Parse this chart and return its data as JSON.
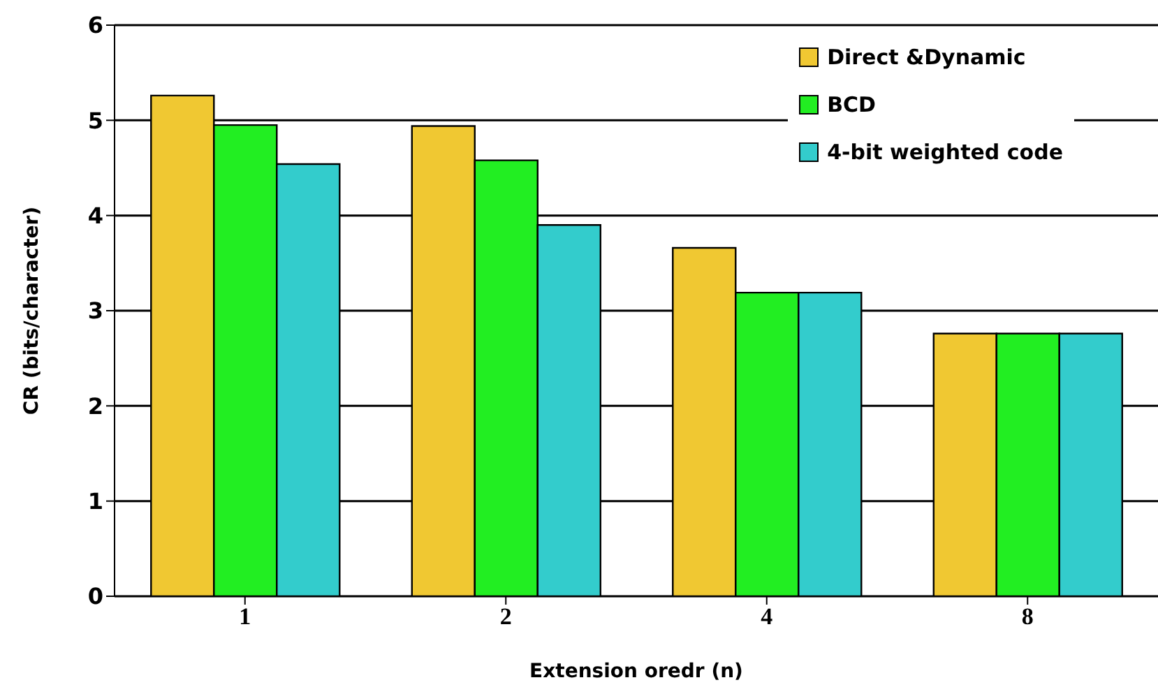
{
  "chart_data": {
    "type": "bar",
    "xlabel": "Extension oredr (n)",
    "ylabel": "CR (bits/character)",
    "categories": [
      "1",
      "2",
      "4",
      "8"
    ],
    "series": [
      {
        "name": "Direct &Dynamic",
        "color": "#f0c832",
        "values": [
          5.26,
          4.94,
          3.66,
          2.76
        ]
      },
      {
        "name": "BCD",
        "color": "#22ee22",
        "values": [
          4.95,
          4.58,
          3.19,
          2.76
        ]
      },
      {
        "name": "4-bit weighted code",
        "color": "#33cccc",
        "values": [
          4.54,
          3.9,
          3.19,
          2.76
        ]
      }
    ],
    "ylim": [
      0,
      6
    ],
    "yticks": [
      0,
      1,
      2,
      3,
      4,
      5,
      6
    ],
    "grid": "y",
    "legend": "top right"
  }
}
